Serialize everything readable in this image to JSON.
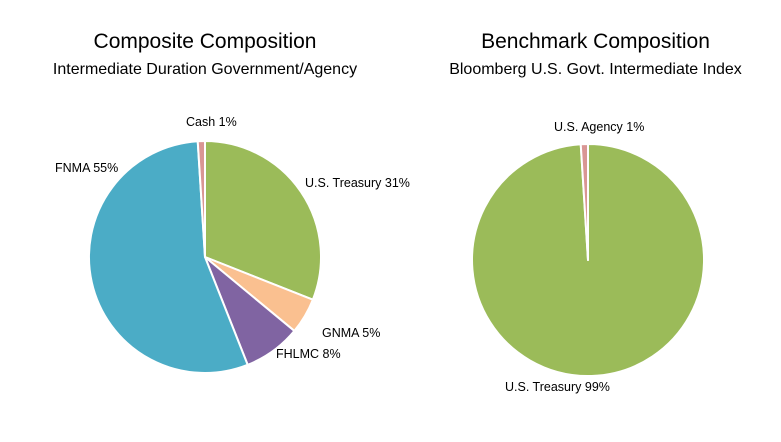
{
  "chart_data": [
    {
      "type": "pie",
      "title": "Composite Composition",
      "subtitle": "Intermediate Duration Government/Agency",
      "slices": [
        {
          "label": "U.S. Treasury",
          "value": 31,
          "label_text": "U.S. Treasury 31%",
          "color": "#9BBB59"
        },
        {
          "label": "GNMA",
          "value": 5,
          "label_text": "GNMA 5%",
          "color": "#FAC090"
        },
        {
          "label": "FHLMC",
          "value": 8,
          "label_text": "FHLMC 8%",
          "color": "#8064A2"
        },
        {
          "label": "FNMA",
          "value": 55,
          "label_text": "FNMA 55%",
          "color": "#4BACC6"
        },
        {
          "label": "Cash",
          "value": 1,
          "label_text": "Cash 1%",
          "color": "#D99694"
        }
      ]
    },
    {
      "type": "pie",
      "title": "Benchmark Composition",
      "subtitle": "Bloomberg U.S. Govt. Intermediate Index",
      "slices": [
        {
          "label": "U.S. Treasury",
          "value": 99,
          "label_text": "U.S. Treasury 99%",
          "color": "#9BBB59"
        },
        {
          "label": "U.S. Agency",
          "value": 1,
          "label_text": "U.S. Agency 1%",
          "color": "#D99694"
        }
      ]
    }
  ]
}
